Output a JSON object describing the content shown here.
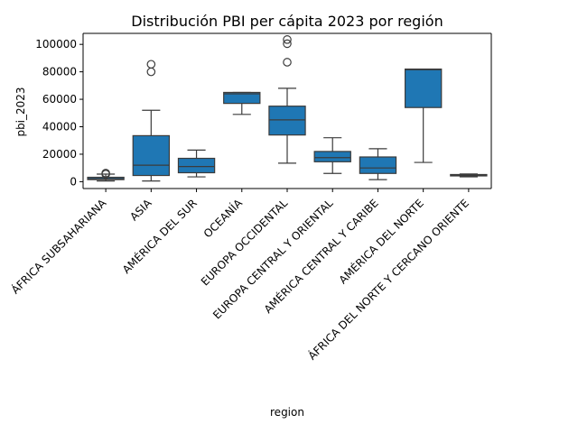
{
  "chart_data": {
    "type": "box",
    "title": "Distribución PBI per cápita 2023 por región",
    "xlabel": "region",
    "ylabel": "pbi_2023",
    "ylim": [
      -5000,
      108000
    ],
    "yticks": [
      0,
      20000,
      40000,
      60000,
      80000,
      100000
    ],
    "ytick_labels": [
      "0",
      "20000",
      "40000",
      "60000",
      "80000",
      "100000"
    ],
    "grid": false,
    "color": "#1f77b4",
    "edge_color": "#3b3b3b",
    "categories": [
      "ÁFRICA  SUBSAHARIANA",
      "ASIA",
      "AMÉRICA  DEL  SUR",
      "OCEANÍA",
      "EUROPA  OCCIDENTAL",
      "EUROPA  CENTRAL  Y  ORIENTAL",
      "AMÉRICA  CENTRAL  Y  CARIBE",
      "AMÉRICA  DEL  NORTE",
      "ÁFRICA  DEL  NORTE  Y  CERCANO  ORIENTE"
    ],
    "boxes": [
      {
        "whislo": 500,
        "q1": 1500,
        "med": 2200,
        "q3": 3200,
        "whishi": 5500,
        "fliers": [
          6200,
          5500
        ]
      },
      {
        "whislo": 500,
        "q1": 4500,
        "med": 12000,
        "q3": 33500,
        "whishi": 52000,
        "fliers": [
          80000,
          85500
        ]
      },
      {
        "whislo": 3500,
        "q1": 6500,
        "med": 11000,
        "q3": 17000,
        "whishi": 23000,
        "fliers": []
      },
      {
        "whislo": 49000,
        "q1": 57000,
        "med": 64000,
        "q3": 65000,
        "whishi": 65000,
        "fliers": []
      },
      {
        "whislo": 13500,
        "q1": 34000,
        "med": 45000,
        "q3": 55000,
        "whishi": 68000,
        "fliers": [
          87000,
          100500,
          103500
        ]
      },
      {
        "whislo": 6000,
        "q1": 14500,
        "med": 17500,
        "q3": 22000,
        "whishi": 32000,
        "fliers": []
      },
      {
        "whislo": 1500,
        "q1": 6000,
        "med": 10000,
        "q3": 18000,
        "whishi": 24000,
        "fliers": []
      },
      {
        "whislo": 14000,
        "q1": 54000,
        "med": 81500,
        "q3": 82000,
        "whishi": 82000,
        "fliers": []
      },
      {
        "whislo": 3500,
        "q1": 4200,
        "med": 4800,
        "q3": 5200,
        "whishi": 5600,
        "fliers": []
      }
    ]
  }
}
